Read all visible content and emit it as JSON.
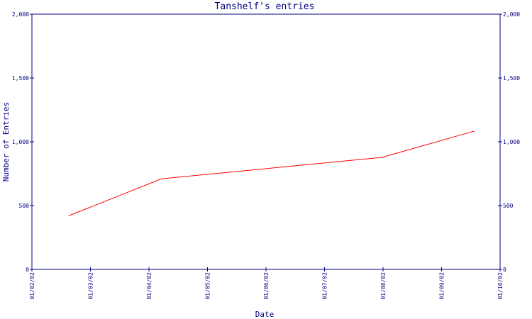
{
  "chart_data": {
    "type": "line",
    "title": "Tanshelf's entries",
    "xlabel": "Date",
    "ylabel": "Number of Entries",
    "x_ticks": [
      "01/02/02",
      "01/03/02",
      "01/04/02",
      "01/05/02",
      "01/06/02",
      "01/07/02",
      "01/08/02",
      "01/09/02",
      "01/10/02"
    ],
    "y_ticks": [
      0,
      500,
      1000,
      1500,
      2000
    ],
    "y_tick_labels": [
      "0",
      "500",
      "1,000",
      "1,500",
      "2,000"
    ],
    "ylim": [
      0,
      2000
    ],
    "xlim": [
      "2002-02-01",
      "2002-10-01"
    ],
    "grid": false,
    "series": [
      {
        "color": "#ff0000",
        "points": [
          {
            "x": "2002-02-20",
            "y": 420
          },
          {
            "x": "2002-04-09",
            "y": 710
          },
          {
            "x": "2002-08-01",
            "y": 878
          },
          {
            "x": "2002-09-18",
            "y": 1085
          }
        ]
      }
    ]
  },
  "colors": {
    "axis": "#000080",
    "text": "#000080",
    "line": "#ff0000",
    "background": "#ffffff"
  }
}
